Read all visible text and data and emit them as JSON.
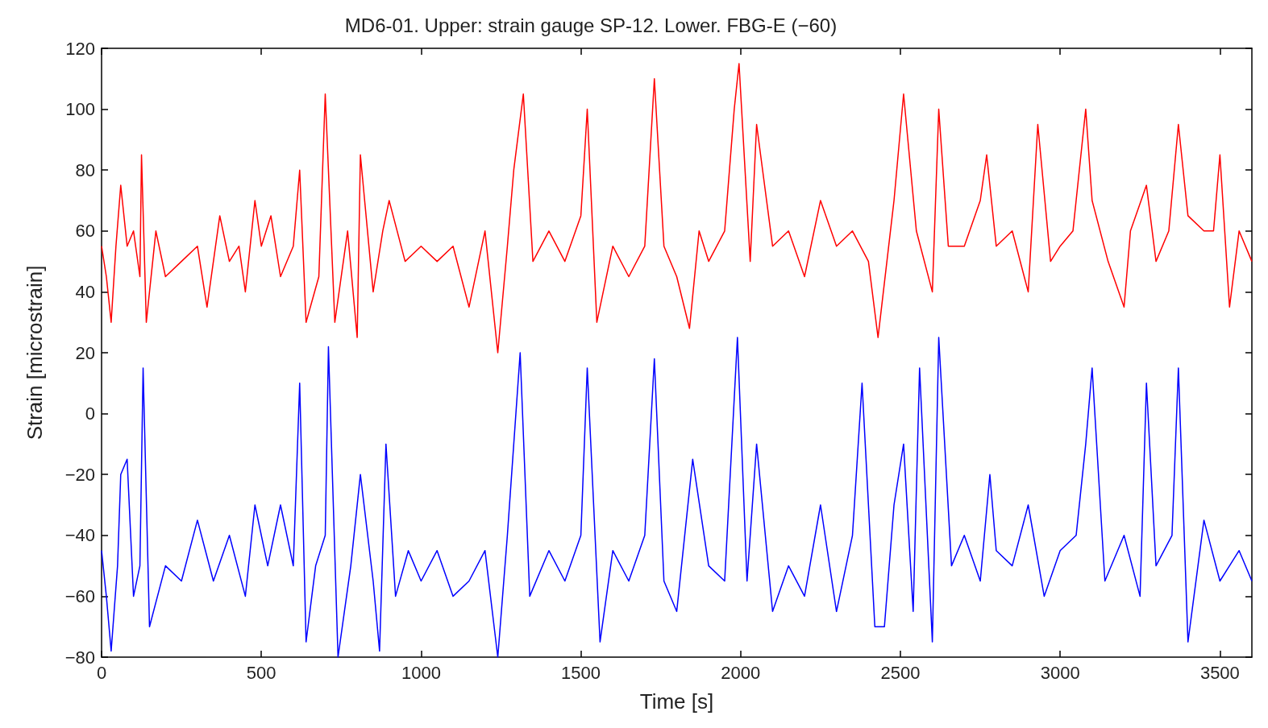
{
  "chart_data": {
    "type": "line",
    "title": "MD6-01. Upper: strain gauge SP-12. Lower. FBG-E (−60)",
    "xlabel": "Time [s]",
    "ylabel": "Strain [microstrain]",
    "xlim": [
      0,
      3600
    ],
    "xticks": [
      0,
      500,
      1000,
      1500,
      2000,
      2500,
      3000,
      3500
    ],
    "ylim": [
      -80,
      120
    ],
    "yticks": [
      {
        "value": -80,
        "label": "−80"
      },
      {
        "value": -60,
        "label": "−60"
      },
      {
        "value": -40,
        "label": "−40"
      },
      {
        "value": -20,
        "label": "−20"
      },
      0,
      20,
      40,
      60,
      80,
      100,
      120
    ],
    "grid": false,
    "marker": "none",
    "line_style": "solid",
    "series": [
      {
        "color": "#ff0000",
        "x": [
          0,
          15,
          30,
          45,
          60,
          80,
          100,
          120,
          125,
          140,
          170,
          200,
          250,
          300,
          330,
          370,
          400,
          430,
          450,
          480,
          500,
          530,
          560,
          600,
          620,
          640,
          680,
          700,
          730,
          770,
          800,
          810,
          850,
          880,
          900,
          950,
          1000,
          1050,
          1100,
          1150,
          1200,
          1240,
          1270,
          1290,
          1320,
          1350,
          1400,
          1450,
          1500,
          1520,
          1550,
          1600,
          1650,
          1700,
          1730,
          1760,
          1800,
          1840,
          1870,
          1900,
          1950,
          1980,
          1995,
          2030,
          2050,
          2100,
          2150,
          2200,
          2250,
          2300,
          2350,
          2400,
          2430,
          2480,
          2510,
          2550,
          2600,
          2620,
          2650,
          2700,
          2750,
          2770,
          2800,
          2850,
          2900,
          2930,
          2970,
          3000,
          3040,
          3080,
          3100,
          3150,
          3200,
          3220,
          3270,
          3300,
          3340,
          3370,
          3400,
          3450,
          3480,
          3500,
          3530,
          3560,
          3600
        ],
        "values": [
          55,
          45,
          30,
          55,
          75,
          55,
          60,
          45,
          85,
          30,
          60,
          45,
          50,
          55,
          35,
          65,
          50,
          55,
          40,
          70,
          55,
          65,
          45,
          55,
          80,
          30,
          45,
          105,
          30,
          60,
          25,
          85,
          40,
          60,
          70,
          50,
          55,
          50,
          55,
          35,
          60,
          20,
          55,
          80,
          105,
          50,
          60,
          50,
          65,
          100,
          30,
          55,
          45,
          55,
          110,
          55,
          45,
          28,
          60,
          50,
          60,
          100,
          115,
          50,
          95,
          55,
          60,
          45,
          70,
          55,
          60,
          50,
          25,
          70,
          105,
          60,
          40,
          100,
          55,
          55,
          70,
          85,
          55,
          60,
          40,
          95,
          50,
          55,
          60,
          100,
          70,
          50,
          35,
          60,
          75,
          50,
          60,
          95,
          65,
          60,
          60,
          85,
          35,
          60,
          50
        ]
      },
      {
        "color": "#0000ff",
        "x": [
          0,
          15,
          30,
          50,
          60,
          80,
          100,
          120,
          130,
          150,
          200,
          250,
          300,
          350,
          400,
          450,
          480,
          520,
          560,
          600,
          620,
          640,
          670,
          700,
          710,
          740,
          780,
          810,
          850,
          870,
          890,
          920,
          960,
          1000,
          1050,
          1100,
          1150,
          1200,
          1240,
          1270,
          1290,
          1310,
          1340,
          1400,
          1450,
          1500,
          1520,
          1560,
          1600,
          1650,
          1700,
          1730,
          1760,
          1800,
          1850,
          1900,
          1950,
          1990,
          2020,
          2050,
          2100,
          2150,
          2200,
          2250,
          2300,
          2350,
          2380,
          2420,
          2450,
          2480,
          2510,
          2540,
          2560,
          2600,
          2620,
          2660,
          2700,
          2750,
          2780,
          2800,
          2850,
          2900,
          2950,
          3000,
          3050,
          3080,
          3100,
          3140,
          3200,
          3250,
          3270,
          3300,
          3350,
          3370,
          3400,
          3450,
          3500,
          3560,
          3600
        ],
        "values": [
          -45,
          -60,
          -78,
          -50,
          -20,
          -15,
          -60,
          -50,
          15,
          -70,
          -50,
          -55,
          -35,
          -55,
          -40,
          -60,
          -30,
          -50,
          -30,
          -50,
          10,
          -75,
          -50,
          -40,
          22,
          -80,
          -50,
          -20,
          -55,
          -78,
          -10,
          -60,
          -45,
          -55,
          -45,
          -60,
          -55,
          -45,
          -80,
          -40,
          -10,
          20,
          -60,
          -45,
          -55,
          -40,
          15,
          -75,
          -45,
          -55,
          -40,
          18,
          -55,
          -65,
          -15,
          -50,
          -55,
          25,
          -55,
          -10,
          -65,
          -50,
          -60,
          -30,
          -65,
          -40,
          10,
          -70,
          -70,
          -30,
          -10,
          -65,
          15,
          -75,
          25,
          -50,
          -40,
          -55,
          -20,
          -45,
          -50,
          -30,
          -60,
          -45,
          -40,
          -10,
          15,
          -55,
          -40,
          -60,
          10,
          -50,
          -40,
          15,
          -75,
          -35,
          -55,
          -45,
          -55
        ]
      }
    ]
  }
}
